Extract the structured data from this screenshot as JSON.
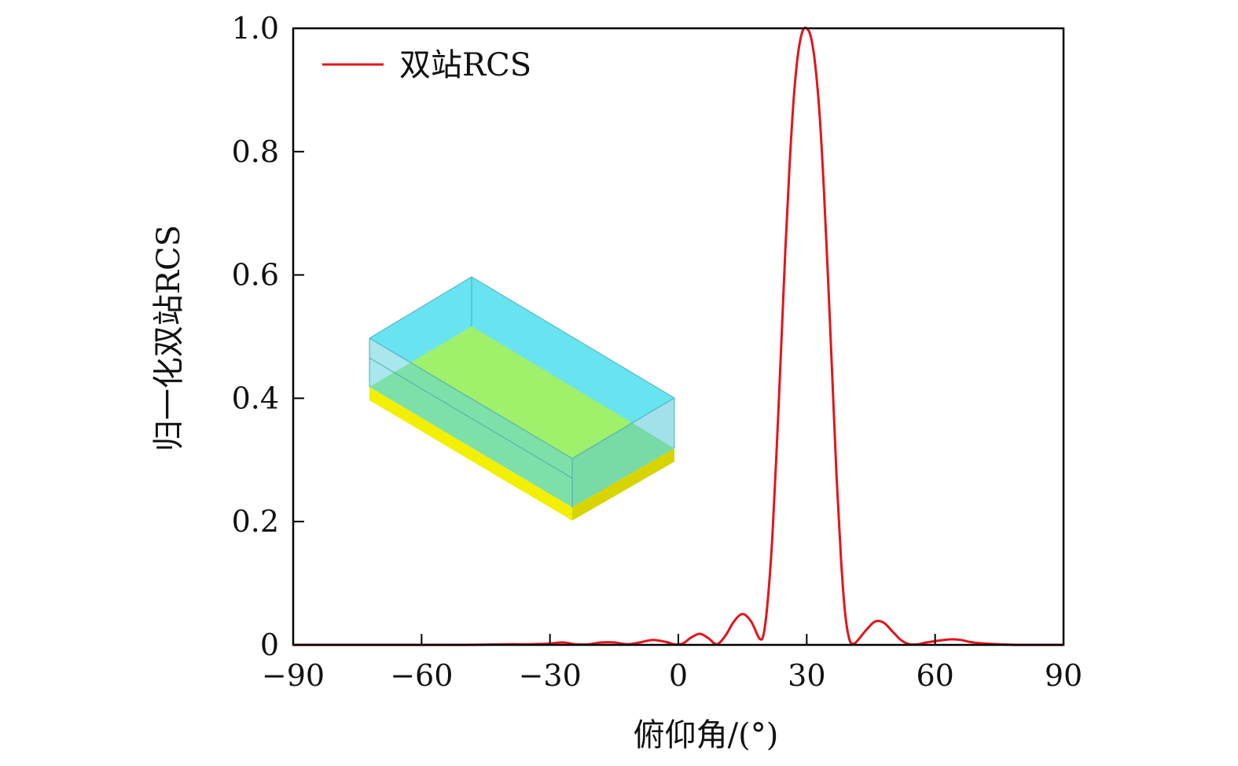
{
  "chart_data": {
    "type": "line",
    "xlabel": "俯仰角/(°)",
    "ylabel": "归一化双站RCS",
    "xlim": [
      -90,
      90
    ],
    "ylim": [
      0,
      1.0
    ],
    "x_ticks": [
      -90,
      -60,
      -30,
      0,
      30,
      60,
      90
    ],
    "x_tick_labels": [
      "−90",
      "−60",
      "−30",
      "0",
      "30",
      "60",
      "90"
    ],
    "y_ticks": [
      0,
      0.2,
      0.4,
      0.6,
      0.8,
      1.0
    ],
    "y_tick_labels": [
      "0",
      "0.2",
      "0.4",
      "0.6",
      "0.8",
      "1.0"
    ],
    "grid": false,
    "legend_position": "top-left",
    "series": [
      {
        "name": "双站RCS",
        "color": "#e3141b",
        "x": [
          -90,
          -80,
          -70,
          -60,
          -50,
          -40,
          -35,
          -30,
          -27,
          -24,
          -21,
          -18,
          -15,
          -12,
          -9,
          -6,
          -3,
          -1,
          1,
          3,
          5,
          7,
          9,
          11,
          13,
          15,
          17,
          19,
          20,
          21,
          22,
          23,
          24,
          25,
          26,
          27,
          28,
          29,
          30,
          31,
          32,
          33,
          34,
          35,
          36,
          37,
          38,
          39,
          40,
          41,
          42,
          44,
          46,
          48,
          50,
          52,
          54,
          56,
          58,
          60,
          62,
          64,
          66,
          68,
          70,
          75,
          80,
          85,
          90
        ],
        "values": [
          0,
          0,
          0,
          0,
          0,
          0.001,
          0.001,
          0.002,
          0.004,
          0.001,
          0.001,
          0.004,
          0.004,
          0.001,
          0.004,
          0.008,
          0.005,
          0.001,
          0.002,
          0.012,
          0.018,
          0.011,
          0.001,
          0.015,
          0.038,
          0.05,
          0.038,
          0.01,
          0.02,
          0.08,
          0.18,
          0.32,
          0.48,
          0.64,
          0.78,
          0.89,
          0.96,
          0.995,
          1.0,
          0.985,
          0.94,
          0.86,
          0.74,
          0.59,
          0.43,
          0.27,
          0.14,
          0.05,
          0.008,
          0.002,
          0.008,
          0.025,
          0.038,
          0.036,
          0.022,
          0.008,
          0.001,
          0.001,
          0.004,
          0.006,
          0.008,
          0.009,
          0.008,
          0.005,
          0.003,
          0.001,
          0,
          0,
          0
        ]
      }
    ]
  }
}
